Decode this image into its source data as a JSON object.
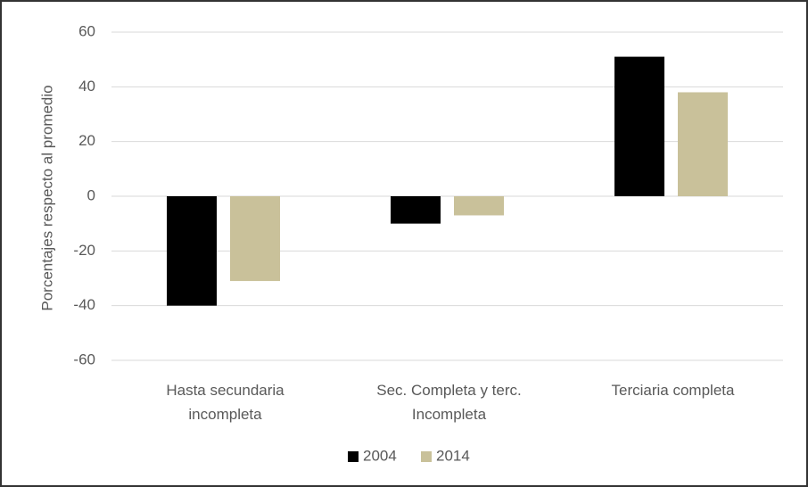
{
  "chart_data": {
    "type": "bar",
    "y_label": "Porcentajes respecto al promedio",
    "categories": [
      "Hasta secundaria incompleta",
      "Sec. Completa y terc. Incompleta",
      "Terciaria completa"
    ],
    "series": [
      {
        "name": "2004",
        "color": "#000000",
        "values": [
          -40,
          -10,
          51
        ]
      },
      {
        "name": "2014",
        "color": "#c9c19a",
        "values": [
          -31,
          -7,
          38
        ]
      }
    ],
    "ylim": [
      -60,
      60
    ],
    "yticks": [
      -60,
      -40,
      -20,
      0,
      20,
      40,
      60
    ],
    "grid": true,
    "legend": "bottom"
  }
}
